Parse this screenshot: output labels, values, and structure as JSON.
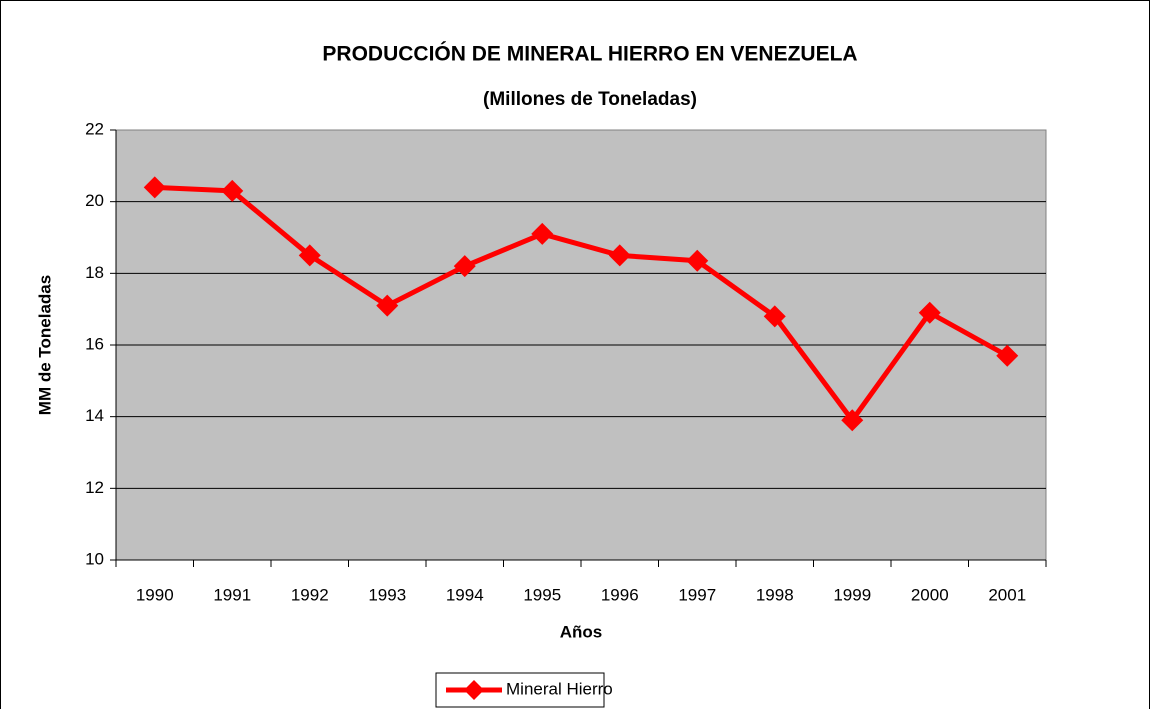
{
  "chart_data": {
    "type": "line",
    "title": "PRODUCCIÓN DE MINERAL HIERRO EN VENEZUELA",
    "subtitle": "(Millones de Toneladas)",
    "x_label": "Años",
    "y_label": "MM de Toneladas",
    "categories": [
      "1990",
      "1991",
      "1992",
      "1993",
      "1994",
      "1995",
      "1996",
      "1997",
      "1998",
      "1999",
      "2000",
      "2001"
    ],
    "series": [
      {
        "name": "Mineral Hierro",
        "color": "#ff0000",
        "values": [
          20.4,
          20.3,
          18.5,
          17.1,
          18.2,
          19.1,
          18.5,
          18.35,
          16.8,
          13.9,
          16.9,
          15.7
        ]
      }
    ],
    "ylim": [
      10,
      22
    ],
    "yticks": [
      10,
      12,
      14,
      16,
      18,
      20,
      22
    ],
    "grid": true,
    "legend": "bottom"
  }
}
